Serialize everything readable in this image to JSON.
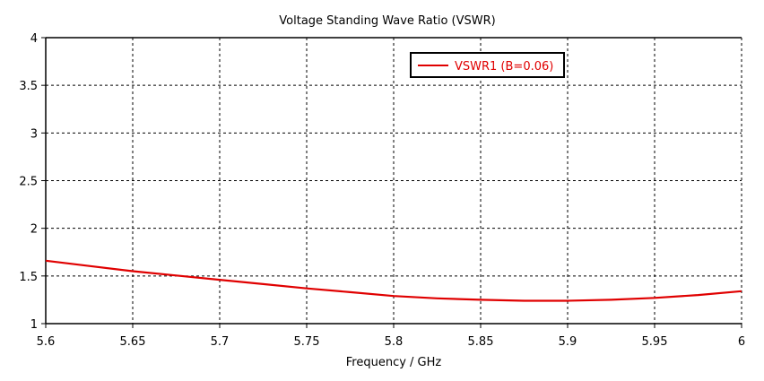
{
  "chart_data": {
    "type": "line",
    "title": "Voltage Standing Wave Ratio (VSWR)",
    "xlabel": "Frequency / GHz",
    "ylabel": "",
    "xlim": [
      5.6,
      6.0
    ],
    "ylim": [
      1,
      4
    ],
    "xticks": [
      5.6,
      5.65,
      5.7,
      5.75,
      5.8,
      5.85,
      5.9,
      5.95,
      6.0
    ],
    "xtick_labels": [
      "5.6",
      "5.65",
      "5.7",
      "5.75",
      "5.8",
      "5.85",
      "5.9",
      "5.95",
      "6"
    ],
    "yticks": [
      1,
      1.5,
      2,
      2.5,
      3,
      3.5,
      4
    ],
    "ytick_labels": [
      "1",
      "1.5",
      "2",
      "2.5",
      "3",
      "3.5",
      "4"
    ],
    "grid": true,
    "legend_position": "top-right",
    "series": [
      {
        "name": "VSWR1 (B=0.06)",
        "color": "#e00000",
        "x": [
          5.6,
          5.625,
          5.65,
          5.675,
          5.7,
          5.725,
          5.75,
          5.775,
          5.8,
          5.825,
          5.85,
          5.875,
          5.9,
          5.925,
          5.95,
          5.975,
          6.0
        ],
        "y": [
          1.66,
          1.605,
          1.55,
          1.505,
          1.46,
          1.415,
          1.37,
          1.33,
          1.29,
          1.265,
          1.25,
          1.24,
          1.24,
          1.25,
          1.27,
          1.3,
          1.34
        ]
      }
    ]
  }
}
